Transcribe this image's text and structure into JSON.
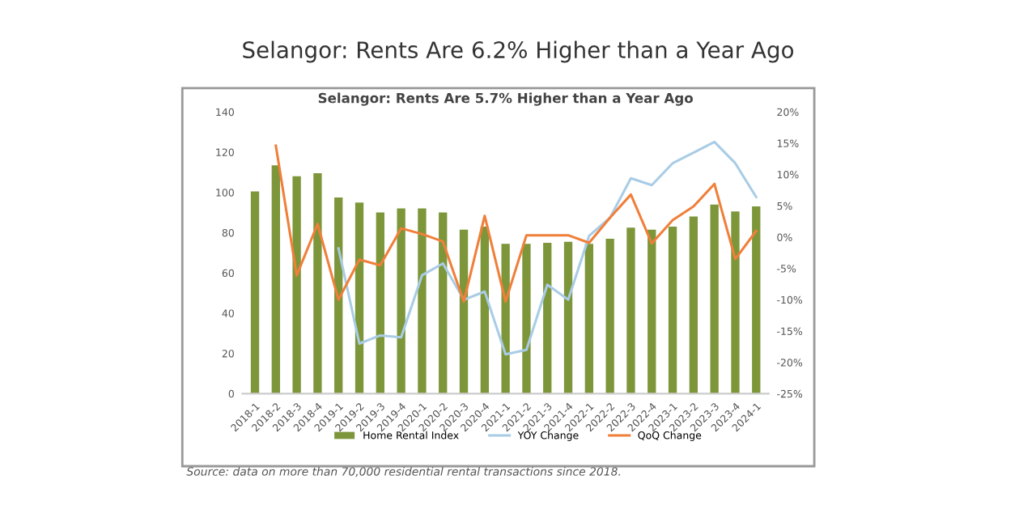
{
  "chart_data": {
    "type": "bar",
    "title": "Selangor: Rents Are 6.2% Higher than a Year Ago",
    "subtitle": "Selangor: Rents Are 5.7% Higher than a Year Ago",
    "categories": [
      "2018-1",
      "2018-2",
      "2018-3",
      "2018-4",
      "2019-1",
      "2019-2",
      "2019-3",
      "2019-4",
      "2020-1",
      "2020-2",
      "2020-3",
      "2020-4",
      "2021-1",
      "2021-2",
      "2021-3",
      "2021-4",
      "2022-1",
      "2022-2",
      "2022-3",
      "2022-4",
      "2023-1",
      "2023-2",
      "2023-3",
      "2023-4",
      "2024-1"
    ],
    "series": [
      {
        "name": "Home Rental Index",
        "color": "#7d963a",
        "values": [
          100.5,
          113.5,
          108,
          109.5,
          97.5,
          95,
          90,
          92,
          92,
          90,
          81.5,
          83,
          74.5,
          74.5,
          75,
          75.5,
          74.5,
          77,
          82.5,
          81.5,
          83,
          88,
          94,
          90.5,
          93
        ]
      },
      {
        "name": "YOY Change",
        "type": "line",
        "axis": "y2",
        "color": "#a9cce6",
        "values": [
          null,
          null,
          null,
          null,
          -1.8,
          -17,
          -15.7,
          -16,
          -6.1,
          -4.2,
          -10,
          -8.7,
          -18.7,
          -18,
          -7.6,
          -10,
          0.2,
          3.1,
          9.4,
          8.3,
          11.8,
          13.5,
          15.2,
          11.8,
          6.4
        ]
      },
      {
        "name": "QoQ Change",
        "type": "line",
        "axis": "y2",
        "color": "#f07f3a",
        "values": [
          null,
          14.6,
          -6.1,
          2.1,
          -10,
          -3.6,
          -4.5,
          1.4,
          0.5,
          -0.7,
          -10.3,
          3.4,
          -10.3,
          0.3,
          0.3,
          0.3,
          -0.9,
          3.1,
          6.8,
          -1,
          2.7,
          4.9,
          8.5,
          -3.5,
          1
        ]
      }
    ],
    "ylim": [
      0,
      140
    ],
    "yticks": [
      0,
      20,
      40,
      60,
      80,
      100,
      120,
      140
    ],
    "y2lim": [
      -25,
      20
    ],
    "y2ticks": [
      {
        "value": -25,
        "label": "-25%"
      },
      {
        "value": -20,
        "label": "-20%"
      },
      {
        "value": -15,
        "label": "-15%"
      },
      {
        "value": -10,
        "label": "-10%"
      },
      {
        "value": -5,
        "label": "-5%"
      },
      {
        "value": 0,
        "label": "0%"
      },
      {
        "value": 5,
        "label": "5%"
      },
      {
        "value": 10,
        "label": "10%"
      },
      {
        "value": 15,
        "label": "15%"
      },
      {
        "value": 20,
        "label": "20%"
      }
    ],
    "legend": "bottom",
    "grid": false,
    "marker": "none",
    "line_style": "solid",
    "annotations": [
      "Source: data on more than 70,000 residential rental transactions since 2018."
    ]
  }
}
